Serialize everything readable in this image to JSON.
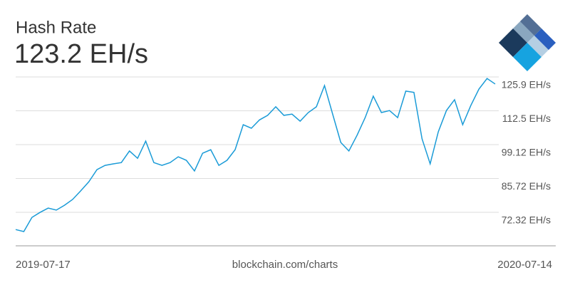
{
  "chart_data": {
    "type": "line",
    "title": "Hash Rate",
    "subtitle": "123.2 EH/s",
    "source": "blockchain.com/charts",
    "categories": [
      "2019-07-17",
      null,
      null,
      null,
      null,
      null,
      null,
      null,
      null,
      null,
      null,
      null,
      null,
      null,
      null,
      null,
      null,
      null,
      null,
      null,
      null,
      null,
      null,
      null,
      null,
      null,
      null,
      null,
      null,
      null,
      null,
      null,
      null,
      null,
      null,
      null,
      null,
      null,
      null,
      null,
      null,
      null,
      null,
      null,
      null,
      null,
      null,
      null,
      null,
      null,
      null,
      null,
      null,
      null,
      null,
      null,
      null,
      null,
      null,
      "2020-07-14"
    ],
    "series": [
      {
        "name": "Hash Rate",
        "color": "#1a9bd7",
        "values": [
          65.5,
          64.7,
          70.3,
          72.3,
          74,
          73.2,
          75.1,
          77.4,
          80.8,
          84.4,
          89.2,
          90.9,
          91.5,
          92,
          96.6,
          93.7,
          100.5,
          92,
          90.9,
          92,
          94.3,
          92.9,
          88.7,
          95.7,
          97.1,
          90.9,
          92.9,
          97.1,
          107,
          105.6,
          108.9,
          110.7,
          114.1,
          110.7,
          111.2,
          108.4,
          111.8,
          114.1,
          122.5,
          111.2,
          100,
          96.6,
          102.8,
          109.8,
          118.3,
          111.8,
          112.6,
          109.8,
          120.3,
          119.8,
          101.4,
          91.5,
          104.2,
          112.6,
          116.9,
          107,
          114.6,
          121.1,
          125.3,
          123.1
        ]
      }
    ],
    "ylim": [
      59.06,
      128.16
    ],
    "yticks": [
      {
        "value": 72.32,
        "label": "72.32 EH/s"
      },
      {
        "value": 85.72,
        "label": "85.72 EH/s"
      },
      {
        "value": 99.12,
        "label": "99.12 EH/s"
      },
      {
        "value": 112.5,
        "label": "112.5 EH/s"
      },
      {
        "value": 125.9,
        "label": "125.9 EH/s"
      }
    ],
    "grid": true
  }
}
